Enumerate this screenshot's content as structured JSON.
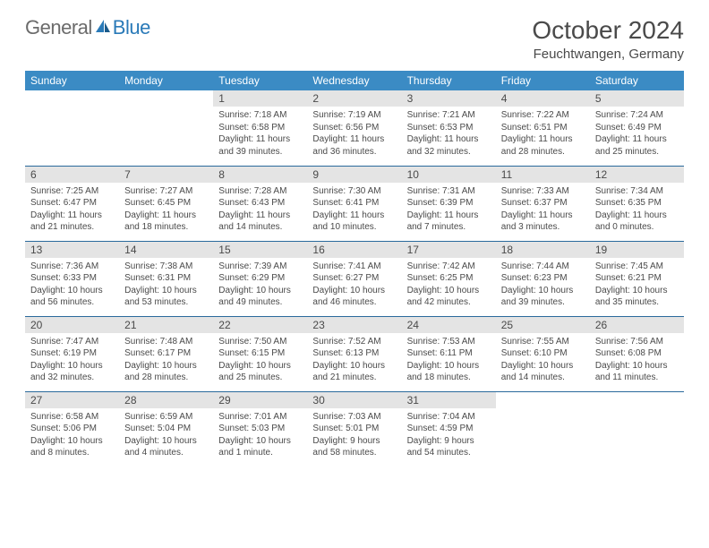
{
  "brand": {
    "general": "General",
    "blue": "Blue"
  },
  "title": "October 2024",
  "location": "Feuchtwangen, Germany",
  "colors": {
    "header_bg": "#3b8bc4",
    "header_text": "#ffffff",
    "daynum_bg": "#e4e4e4",
    "text": "#4a4a4a",
    "rule": "#2a6a9c",
    "logo_blue": "#2a7ab8",
    "logo_gray": "#6b6b6b",
    "page_bg": "#ffffff"
  },
  "typography": {
    "title_fontsize": 28,
    "location_fontsize": 15,
    "header_fontsize": 12,
    "daynum_fontsize": 12,
    "body_fontsize": 10,
    "logo_fontsize": 22
  },
  "weekdays": [
    "Sunday",
    "Monday",
    "Tuesday",
    "Wednesday",
    "Thursday",
    "Friday",
    "Saturday"
  ],
  "weeks": [
    [
      {
        "blank": true
      },
      {
        "blank": true
      },
      {
        "num": "1",
        "sunrise": "7:18 AM",
        "sunset": "6:58 PM",
        "daylight": "11 hours and 39 minutes."
      },
      {
        "num": "2",
        "sunrise": "7:19 AM",
        "sunset": "6:56 PM",
        "daylight": "11 hours and 36 minutes."
      },
      {
        "num": "3",
        "sunrise": "7:21 AM",
        "sunset": "6:53 PM",
        "daylight": "11 hours and 32 minutes."
      },
      {
        "num": "4",
        "sunrise": "7:22 AM",
        "sunset": "6:51 PM",
        "daylight": "11 hours and 28 minutes."
      },
      {
        "num": "5",
        "sunrise": "7:24 AM",
        "sunset": "6:49 PM",
        "daylight": "11 hours and 25 minutes."
      }
    ],
    [
      {
        "num": "6",
        "sunrise": "7:25 AM",
        "sunset": "6:47 PM",
        "daylight": "11 hours and 21 minutes."
      },
      {
        "num": "7",
        "sunrise": "7:27 AM",
        "sunset": "6:45 PM",
        "daylight": "11 hours and 18 minutes."
      },
      {
        "num": "8",
        "sunrise": "7:28 AM",
        "sunset": "6:43 PM",
        "daylight": "11 hours and 14 minutes."
      },
      {
        "num": "9",
        "sunrise": "7:30 AM",
        "sunset": "6:41 PM",
        "daylight": "11 hours and 10 minutes."
      },
      {
        "num": "10",
        "sunrise": "7:31 AM",
        "sunset": "6:39 PM",
        "daylight": "11 hours and 7 minutes."
      },
      {
        "num": "11",
        "sunrise": "7:33 AM",
        "sunset": "6:37 PM",
        "daylight": "11 hours and 3 minutes."
      },
      {
        "num": "12",
        "sunrise": "7:34 AM",
        "sunset": "6:35 PM",
        "daylight": "11 hours and 0 minutes."
      }
    ],
    [
      {
        "num": "13",
        "sunrise": "7:36 AM",
        "sunset": "6:33 PM",
        "daylight": "10 hours and 56 minutes."
      },
      {
        "num": "14",
        "sunrise": "7:38 AM",
        "sunset": "6:31 PM",
        "daylight": "10 hours and 53 minutes."
      },
      {
        "num": "15",
        "sunrise": "7:39 AM",
        "sunset": "6:29 PM",
        "daylight": "10 hours and 49 minutes."
      },
      {
        "num": "16",
        "sunrise": "7:41 AM",
        "sunset": "6:27 PM",
        "daylight": "10 hours and 46 minutes."
      },
      {
        "num": "17",
        "sunrise": "7:42 AM",
        "sunset": "6:25 PM",
        "daylight": "10 hours and 42 minutes."
      },
      {
        "num": "18",
        "sunrise": "7:44 AM",
        "sunset": "6:23 PM",
        "daylight": "10 hours and 39 minutes."
      },
      {
        "num": "19",
        "sunrise": "7:45 AM",
        "sunset": "6:21 PM",
        "daylight": "10 hours and 35 minutes."
      }
    ],
    [
      {
        "num": "20",
        "sunrise": "7:47 AM",
        "sunset": "6:19 PM",
        "daylight": "10 hours and 32 minutes."
      },
      {
        "num": "21",
        "sunrise": "7:48 AM",
        "sunset": "6:17 PM",
        "daylight": "10 hours and 28 minutes."
      },
      {
        "num": "22",
        "sunrise": "7:50 AM",
        "sunset": "6:15 PM",
        "daylight": "10 hours and 25 minutes."
      },
      {
        "num": "23",
        "sunrise": "7:52 AM",
        "sunset": "6:13 PM",
        "daylight": "10 hours and 21 minutes."
      },
      {
        "num": "24",
        "sunrise": "7:53 AM",
        "sunset": "6:11 PM",
        "daylight": "10 hours and 18 minutes."
      },
      {
        "num": "25",
        "sunrise": "7:55 AM",
        "sunset": "6:10 PM",
        "daylight": "10 hours and 14 minutes."
      },
      {
        "num": "26",
        "sunrise": "7:56 AM",
        "sunset": "6:08 PM",
        "daylight": "10 hours and 11 minutes."
      }
    ],
    [
      {
        "num": "27",
        "sunrise": "6:58 AM",
        "sunset": "5:06 PM",
        "daylight": "10 hours and 8 minutes."
      },
      {
        "num": "28",
        "sunrise": "6:59 AM",
        "sunset": "5:04 PM",
        "daylight": "10 hours and 4 minutes."
      },
      {
        "num": "29",
        "sunrise": "7:01 AM",
        "sunset": "5:03 PM",
        "daylight": "10 hours and 1 minute."
      },
      {
        "num": "30",
        "sunrise": "7:03 AM",
        "sunset": "5:01 PM",
        "daylight": "9 hours and 58 minutes."
      },
      {
        "num": "31",
        "sunrise": "7:04 AM",
        "sunset": "4:59 PM",
        "daylight": "9 hours and 54 minutes."
      },
      {
        "blank": true
      },
      {
        "blank": true
      }
    ]
  ]
}
